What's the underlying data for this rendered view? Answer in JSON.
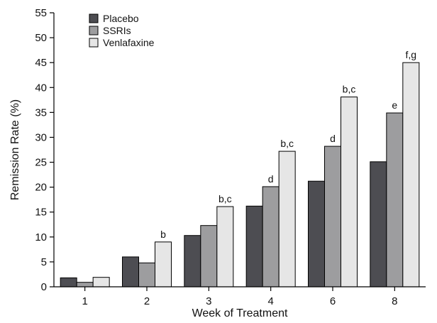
{
  "chart_data": {
    "type": "bar",
    "categories": [
      "1",
      "2",
      "3",
      "4",
      "6",
      "8"
    ],
    "series": [
      {
        "name": "Placebo",
        "color": "#4d4d52",
        "values": [
          1.8,
          6.0,
          10.3,
          16.2,
          21.2,
          25.1
        ]
      },
      {
        "name": "SSRIs",
        "color": "#9d9d9f",
        "values": [
          0.9,
          4.8,
          12.3,
          20.1,
          28.2,
          34.9
        ]
      },
      {
        "name": "Venlafaxine",
        "color": "#e6e6e6",
        "values": [
          1.9,
          9.0,
          16.1,
          27.2,
          38.1,
          45.0
        ]
      }
    ],
    "annotations": [
      {
        "category": "2",
        "series": "Venlafaxine",
        "text": "b"
      },
      {
        "category": "3",
        "series": "Venlafaxine",
        "text": "b,c"
      },
      {
        "category": "4",
        "series": "SSRIs",
        "text": "d"
      },
      {
        "category": "4",
        "series": "Venlafaxine",
        "text": "b,c"
      },
      {
        "category": "6",
        "series": "SSRIs",
        "text": "d"
      },
      {
        "category": "6",
        "series": "Venlafaxine",
        "text": "b,c"
      },
      {
        "category": "8",
        "series": "SSRIs",
        "text": "e"
      },
      {
        "category": "8",
        "series": "Venlafaxine",
        "text": "f,g"
      }
    ],
    "xlabel": "Week of Treatment",
    "ylabel": "Remission Rate (%)",
    "ylim": [
      0,
      55
    ],
    "yticks": [
      0,
      5,
      10,
      15,
      20,
      25,
      30,
      35,
      40,
      45,
      50,
      55
    ],
    "legend_position": "top-left",
    "grid": false
  }
}
